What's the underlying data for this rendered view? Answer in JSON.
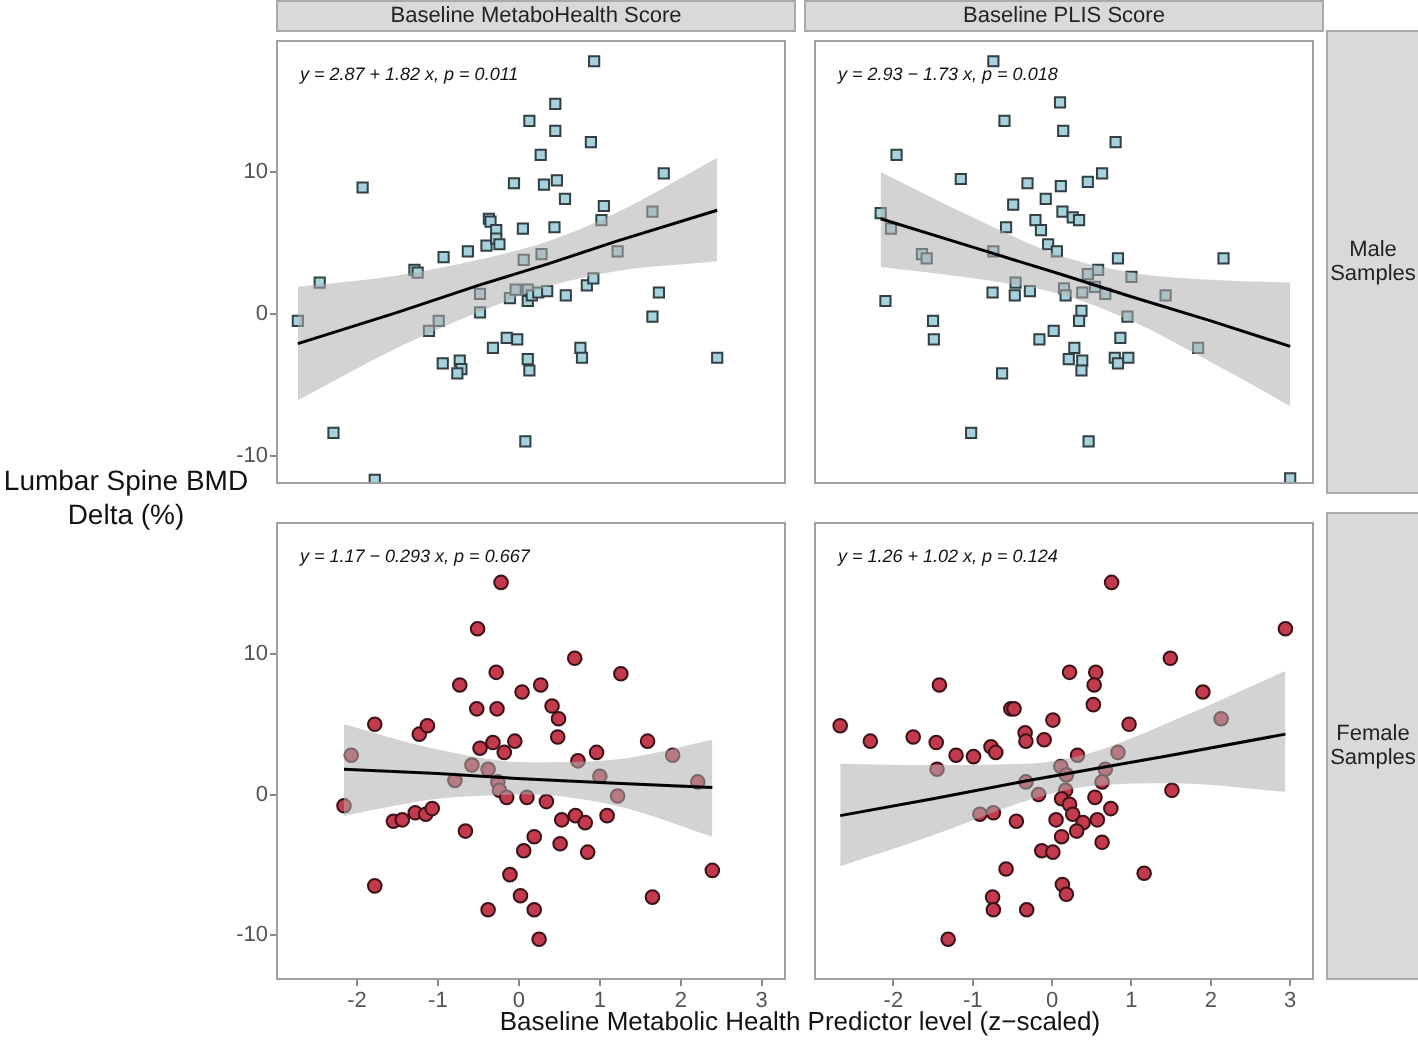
{
  "chart_data": [
    {
      "type": "scatter",
      "title": "Baseline MetaboHealth Score",
      "ylabel": "Lumbar Spine BMD Delta (%)",
      "annotations": [
        "y = 2.87 + 1.82 x, p = 0.011"
      ],
      "marker": "square",
      "tick_labels": "y",
      "xlim": [
        -3.0,
        3.3
      ],
      "xticks": [
        -2,
        -1,
        0,
        1,
        2,
        3
      ],
      "ylim": [
        -12,
        19.3
      ],
      "yticks": [
        -10,
        0,
        10
      ],
      "series": [
        {
          "color": "#a6d2de",
          "x": [
            -2.73,
            -2.46,
            -1.93,
            -2.29,
            -1.78,
            -1.29,
            -1.25,
            -1.11,
            -0.99,
            -0.93,
            -0.94,
            -0.73,
            -0.71,
            -0.76,
            -0.63,
            -0.48,
            -0.48,
            -0.4,
            -0.37,
            -0.35,
            -0.28,
            -0.28,
            -0.24,
            -0.32,
            -0.15,
            -0.06,
            -0.02,
            0.05,
            0.06,
            -0.11,
            -0.04,
            0.11,
            0.13,
            0.08,
            0.11,
            0.11,
            0.16,
            0.13,
            0.27,
            0.24,
            0.28,
            0.31,
            0.35,
            0.44,
            0.45,
            0.45,
            0.47,
            0.57,
            0.58,
            0.76,
            0.78,
            0.84,
            0.92,
            0.89,
            0.93,
            1.02,
            1.05,
            1.22,
            1.65,
            1.65,
            1.73,
            1.79,
            2.45
          ],
          "values": [
            -0.5,
            2.2,
            8.9,
            -8.4,
            -11.7,
            3.1,
            2.9,
            -1.2,
            -0.5,
            4.0,
            -3.5,
            -3.3,
            -3.9,
            -4.2,
            4.4,
            1.4,
            0.1,
            4.8,
            6.7,
            6.5,
            5.9,
            5.3,
            4.9,
            -2.4,
            -1.7,
            9.2,
            -1.8,
            6.0,
            3.8,
            1.1,
            1.7,
            -3.2,
            -4.0,
            -9.0,
            1.7,
            0.9,
            1.3,
            13.6,
            11.2,
            1.5,
            4.2,
            9.1,
            1.6,
            6.1,
            12.9,
            14.8,
            9.4,
            8.1,
            1.3,
            -2.4,
            -3.1,
            2.0,
            2.5,
            12.1,
            17.8,
            6.6,
            7.6,
            4.4,
            -0.2,
            7.2,
            1.5,
            9.9,
            -3.1
          ]
        },
        {
          "type": "line",
          "marker": "none",
          "color": "#000000",
          "x": [
            -2.73,
            -1.5,
            -0.5,
            0.35,
            1.2,
            2.45
          ],
          "values": [
            -2.1,
            0.1,
            2.0,
            3.5,
            5.1,
            7.3
          ],
          "lower": [
            -6.1,
            -2.4,
            0.1,
            1.9,
            3.0,
            3.7
          ],
          "upper": [
            1.9,
            2.7,
            3.8,
            5.1,
            7.1,
            11.0
          ]
        }
      ]
    },
    {
      "type": "scatter",
      "title": "Baseline PLIS Score",
      "annotations": [
        "y = 2.93 − 1.73 x, p = 0.018",
        "Male Samples"
      ],
      "marker": "square",
      "tick_labels": false,
      "xlim": [
        -3.0,
        3.3
      ],
      "xticks": [
        -2,
        -1,
        0,
        1,
        2,
        3
      ],
      "ylim": [
        -12,
        19.3
      ],
      "yticks": [
        -10,
        0,
        10
      ],
      "series": [
        {
          "color": "#a6d2de",
          "x": [
            -0.74,
            0.1,
            -0.6,
            0.14,
            0.8,
            -1.96,
            -1.15,
            -0.31,
            0.11,
            0.45,
            0.63,
            -0.08,
            -0.49,
            0.13,
            0.26,
            0.34,
            -2.16,
            -2.03,
            -0.58,
            -0.21,
            -0.14,
            -0.05,
            0.06,
            -0.74,
            -1.64,
            -1.58,
            0.83,
            2.16,
            0.45,
            0.58,
            1.0,
            -0.46,
            -0.47,
            -0.75,
            -0.28,
            0.15,
            0.17,
            0.38,
            0.54,
            0.67,
            1.43,
            -2.1,
            0.37,
            0.34,
            0.95,
            -1.5,
            -1.49,
            0.02,
            -0.16,
            0.86,
            0.28,
            0.21,
            0.38,
            0.37,
            0.79,
            0.83,
            0.96,
            1.84,
            -0.63,
            -1.02,
            0.46,
            3.0
          ],
          "values": [
            17.8,
            14.9,
            13.6,
            12.9,
            12.1,
            11.2,
            9.5,
            9.2,
            9.0,
            9.3,
            9.9,
            8.1,
            7.7,
            7.2,
            6.8,
            6.6,
            7.1,
            6.0,
            6.1,
            6.6,
            5.9,
            4.9,
            4.4,
            4.4,
            4.2,
            3.9,
            3.9,
            3.9,
            2.8,
            3.1,
            2.6,
            2.2,
            1.3,
            1.5,
            1.6,
            1.8,
            1.3,
            1.5,
            1.9,
            1.4,
            1.3,
            0.9,
            0.2,
            -0.5,
            -0.2,
            -0.5,
            -1.8,
            -1.2,
            -1.8,
            -1.7,
            -2.4,
            -3.2,
            -3.3,
            -4.0,
            -3.1,
            -3.5,
            -3.1,
            -2.4,
            -4.2,
            -8.4,
            -9.0,
            -11.6
          ]
        },
        {
          "type": "line",
          "marker": "none",
          "color": "#000000",
          "x": [
            -2.16,
            -1.0,
            0.1,
            1.0,
            2.0,
            3.0
          ],
          "values": [
            6.7,
            4.7,
            2.8,
            1.2,
            -0.5,
            -2.3
          ],
          "lower": [
            3.3,
            2.5,
            1.4,
            -0.5,
            -3.4,
            -6.5
          ],
          "upper": [
            10.0,
            6.8,
            4.1,
            2.9,
            2.4,
            2.2
          ]
        }
      ]
    },
    {
      "type": "scatter",
      "annotations": [
        "y = 1.17 − 0.293 x, p = 0.667"
      ],
      "xlabel": "Baseline Metabolic Health Predictor level (z−scaled)",
      "marker": "circle",
      "xlim": [
        -3.0,
        3.3
      ],
      "xticks": [
        -2,
        -1,
        0,
        1,
        2,
        3
      ],
      "ylim": [
        -13.2,
        19.4
      ],
      "yticks": [
        -10,
        0,
        10
      ],
      "series": [
        {
          "color": "#c23a4c",
          "x": [
            -2.16,
            -2.07,
            -1.78,
            -1.78,
            -1.55,
            -1.44,
            -1.28,
            -1.23,
            -1.13,
            -1.15,
            -1.07,
            -0.79,
            -0.73,
            -0.66,
            -0.58,
            -0.52,
            -0.51,
            -0.48,
            -0.38,
            -0.38,
            -0.32,
            -0.28,
            -0.27,
            -0.26,
            -0.24,
            -0.22,
            -0.18,
            -0.15,
            -0.11,
            -0.05,
            0.02,
            0.04,
            0.06,
            0.1,
            0.19,
            0.19,
            0.25,
            0.27,
            0.34,
            0.41,
            0.49,
            0.48,
            0.51,
            0.53,
            0.69,
            0.7,
            0.73,
            0.82,
            0.85,
            0.96,
            1.0,
            1.09,
            1.22,
            1.26,
            1.59,
            1.65,
            1.9,
            2.21,
            2.39
          ],
          "values": [
            -0.8,
            2.8,
            -6.5,
            5.0,
            -1.9,
            -1.8,
            -1.3,
            4.3,
            4.9,
            -1.4,
            -1.0,
            1.0,
            7.8,
            -2.6,
            2.1,
            6.1,
            11.8,
            3.3,
            1.8,
            -8.2,
            3.7,
            8.7,
            6.1,
            0.9,
            0.3,
            15.1,
            3.0,
            -0.2,
            -5.7,
            3.8,
            -7.2,
            7.3,
            -4.0,
            -0.2,
            -3.0,
            -8.2,
            -10.3,
            7.8,
            -0.5,
            6.3,
            5.4,
            4.1,
            -3.5,
            -1.8,
            9.7,
            -1.5,
            2.4,
            -2.0,
            -4.1,
            3.0,
            1.3,
            -1.5,
            -0.1,
            8.6,
            3.8,
            -7.3,
            2.8,
            0.9,
            -5.4
          ]
        },
        {
          "type": "line",
          "marker": "none",
          "color": "#000000",
          "x": [
            -2.16,
            -1.0,
            0.1,
            1.2,
            2.39
          ],
          "values": [
            1.8,
            1.5,
            1.1,
            0.8,
            0.5
          ],
          "lower": [
            -1.5,
            -0.3,
            0.0,
            -0.8,
            -3.0
          ],
          "upper": [
            5.0,
            3.2,
            2.3,
            2.5,
            3.9
          ]
        }
      ]
    },
    {
      "type": "scatter",
      "annotations": [
        "y = 1.26 + 1.02 x, p = 0.124",
        "Female Samples"
      ],
      "marker": "circle",
      "tick_labels": "x",
      "xlim": [
        -3.0,
        3.3
      ],
      "xticks": [
        -2,
        -1,
        0,
        1,
        2,
        3
      ],
      "ylim": [
        -13.2,
        19.4
      ],
      "yticks": [
        -10,
        0,
        10
      ],
      "series": [
        {
          "color": "#c23a4c",
          "x": [
            0.75,
            2.94,
            1.49,
            0.22,
            0.55,
            -1.42,
            0.53,
            1.9,
            -0.52,
            -0.48,
            0.52,
            -2.67,
            0.01,
            0.97,
            2.13,
            -0.34,
            -2.29,
            -1.75,
            -1.46,
            -0.33,
            -0.1,
            -0.77,
            -0.71,
            -1.21,
            -0.99,
            0.32,
            0.83,
            -1.45,
            0.11,
            0.18,
            0.67,
            -0.33,
            0.63,
            -0.17,
            0.17,
            1.51,
            0.12,
            0.54,
            0.22,
            -0.91,
            -0.74,
            0.26,
            0.74,
            -0.45,
            0.05,
            0.39,
            0.57,
            0.31,
            0.12,
            0.63,
            -0.13,
            0.01,
            -0.58,
            1.16,
            0.13,
            0.18,
            -0.75,
            -0.74,
            -0.32,
            -1.31
          ],
          "values": [
            15.1,
            11.8,
            9.7,
            8.7,
            8.7,
            7.8,
            7.8,
            7.3,
            6.1,
            6.1,
            6.4,
            4.9,
            5.3,
            5.0,
            5.4,
            4.4,
            3.8,
            4.1,
            3.7,
            3.8,
            3.9,
            3.4,
            3.0,
            2.8,
            2.7,
            2.8,
            3.0,
            1.8,
            2.0,
            1.4,
            1.8,
            0.9,
            0.9,
            0.0,
            0.3,
            0.3,
            -0.3,
            -0.2,
            -0.7,
            -1.4,
            -1.3,
            -1.4,
            -1.0,
            -1.9,
            -1.8,
            -2.0,
            -1.8,
            -2.6,
            -3.0,
            -3.4,
            -4.0,
            -4.1,
            -5.3,
            -5.6,
            -6.4,
            -7.1,
            -7.3,
            -8.2,
            -8.2,
            -10.3
          ]
        },
        {
          "type": "line",
          "marker": "none",
          "color": "#000000",
          "x": [
            -2.67,
            -1.5,
            -0.3,
            0.5,
            1.5,
            2.94
          ],
          "values": [
            -1.5,
            -0.3,
            1.0,
            1.8,
            2.8,
            4.3
          ],
          "lower": [
            -5.1,
            -2.9,
            -0.4,
            0.6,
            0.8,
            0.2
          ],
          "upper": [
            2.2,
            2.1,
            2.2,
            3.0,
            5.2,
            8.8
          ]
        }
      ]
    }
  ]
}
